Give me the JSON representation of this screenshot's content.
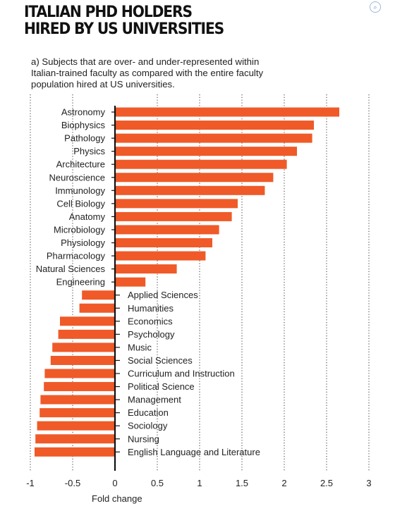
{
  "header": {
    "title_line1": "ITALIAN PHD HOLDERS",
    "title_line2": "HIRED BY US UNIVERSITIES",
    "subtitle": "a) Subjects that are over- and under-represented within Italian-trained faculty as compared with the entire faculty population hired at US universities."
  },
  "colors": {
    "bar": "#ef5a28",
    "axis": "#111111",
    "grid": "#555555"
  },
  "chart_data": {
    "type": "bar",
    "orientation": "horizontal",
    "title": "",
    "xlabel": "Fold change",
    "ylabel": "",
    "xlim": [
      -1,
      3
    ],
    "xticks": [
      -1,
      -0.5,
      0,
      0.5,
      1,
      1.5,
      2,
      2.5,
      3
    ],
    "xtick_labels": [
      "-1",
      "-0.5",
      "0",
      "0.5",
      "1",
      "1.5",
      "2",
      "2.5",
      "3"
    ],
    "grid": "vertical dotted",
    "categories": [
      "Astronomy",
      "Biophysics",
      "Pathology",
      "Physics",
      "Architecture",
      "Neuroscience",
      "Immunology",
      "Cell Biology",
      "Anatomy",
      "Microbiology",
      "Physiology",
      "Pharmacology",
      "Natural Sciences",
      "Engineering",
      "Applied Sciences",
      "Humanities",
      "Economics",
      "Psychology",
      "Music",
      "Social Sciences",
      "Curriculum and Instruction",
      "Political Science",
      "Management",
      "Education",
      "Sociology",
      "Nursing",
      "English Language and Literature"
    ],
    "values": [
      2.65,
      2.35,
      2.33,
      2.15,
      2.03,
      1.87,
      1.77,
      1.45,
      1.38,
      1.23,
      1.15,
      1.07,
      0.73,
      0.36,
      -0.39,
      -0.42,
      -0.65,
      -0.67,
      -0.74,
      -0.76,
      -0.83,
      -0.84,
      -0.88,
      -0.89,
      -0.92,
      -0.94,
      -0.95
    ]
  }
}
